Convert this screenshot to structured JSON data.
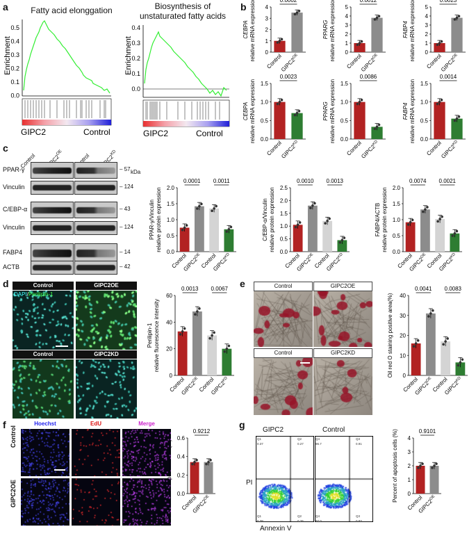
{
  "panel_letters": [
    "a",
    "b",
    "c",
    "d",
    "e",
    "f",
    "g"
  ],
  "gsea": [
    {
      "title": "Fatty acid elonggation",
      "ylabel": "Enrichment",
      "yticks": [
        "0.5",
        "0.4",
        "0.3",
        "0.2",
        "0.1",
        "0.0"
      ],
      "left_label": "GIPC2",
      "right_label": "Control"
    },
    {
      "title": "Biosynthesis of\nunstaturated fatty acids",
      "ylabel": "Enrichment",
      "yticks": [
        "0.4",
        "0.3",
        "0.2",
        "0.1",
        "0.0"
      ],
      "left_label": "GIPC2",
      "right_label": "Control"
    }
  ],
  "colors": {
    "control_red": "#b22222",
    "oe_gray": "#8c8c8c",
    "ctrl_light": "#d4d4d4",
    "kd_green": "#2e7d32",
    "gsea_line": "#33ee33"
  },
  "chart_data": [
    {
      "type": "bar",
      "panel": "b",
      "categories": [
        "Control",
        "GIPC2OE"
      ],
      "values": [
        1.0,
        3.5
      ],
      "ylabel": "CEBPA relative mRNA expression",
      "ylim": [
        0,
        4
      ],
      "yticks": [
        "0",
        "1",
        "2",
        "3",
        "4"
      ],
      "pvalue": "0.0002"
    },
    {
      "type": "bar",
      "panel": "b",
      "categories": [
        "Control",
        "GIPC2OE"
      ],
      "values": [
        1.0,
        3.8
      ],
      "ylabel": "PPARG relative mRNA expression",
      "ylim": [
        0,
        5
      ],
      "yticks": [
        "0",
        "1",
        "2",
        "3",
        "4",
        "5"
      ],
      "pvalue": "0.0012"
    },
    {
      "type": "bar",
      "panel": "b",
      "categories": [
        "Control",
        "GIPC2OE"
      ],
      "values": [
        1.0,
        3.8
      ],
      "ylabel": "FABP4 relative mRNA expression",
      "ylim": [
        0,
        5
      ],
      "yticks": [
        "0",
        "1",
        "2",
        "3",
        "4",
        "5"
      ],
      "pvalue": "0.0023"
    },
    {
      "type": "bar",
      "panel": "b",
      "categories": [
        "Control",
        "GIPC2KD"
      ],
      "values": [
        1.0,
        0.7
      ],
      "ylabel": "CEBPA relative mRNA expression",
      "ylim": [
        0,
        1.5
      ],
      "yticks": [
        "0.0",
        "0.5",
        "1.0",
        "1.5"
      ],
      "pvalue": "0.0023"
    },
    {
      "type": "bar",
      "panel": "b",
      "categories": [
        "Control",
        "GIPC2KD"
      ],
      "values": [
        1.0,
        0.33
      ],
      "ylabel": "PPARG relative mRNA expression",
      "ylim": [
        0,
        1.5
      ],
      "yticks": [
        "0.0",
        "0.5",
        "1.0",
        "1.5"
      ],
      "pvalue": "0.0086"
    },
    {
      "type": "bar",
      "panel": "b",
      "categories": [
        "Control",
        "GIPC2KD"
      ],
      "values": [
        1.0,
        0.55
      ],
      "ylabel": "FABP4 relative mRNA expression",
      "ylim": [
        0,
        1.5
      ],
      "yticks": [
        "0.0",
        "0.5",
        "1.0",
        "1.5"
      ],
      "pvalue": "0.0014"
    },
    {
      "type": "bar",
      "panel": "c",
      "categories": [
        "Control",
        "GIPC2OE",
        "Control",
        "GIPC2KD"
      ],
      "values": [
        0.75,
        1.42,
        1.35,
        0.7
      ],
      "ylabel": "PPAR-γ/Vinculin relative protein expression",
      "ylim": [
        0,
        2.0
      ],
      "yticks": [
        "0.0",
        "0.5",
        "1.0",
        "1.5",
        "2.0"
      ],
      "pvalues": [
        "0.0001",
        "0.0011"
      ]
    },
    {
      "type": "bar",
      "panel": "c",
      "categories": [
        "Control",
        "GIPC2OE",
        "Control",
        "GIPC2KD"
      ],
      "values": [
        1.05,
        1.8,
        1.2,
        0.45
      ],
      "ylabel": "C/EBP-α/Vinculin relative protein expression",
      "ylim": [
        0,
        2.5
      ],
      "yticks": [
        "0.0",
        "0.5",
        "1.0",
        "1.5",
        "2.0",
        "2.5"
      ],
      "pvalues": [
        "0.0010",
        "0.0013"
      ]
    },
    {
      "type": "bar",
      "panel": "c",
      "categories": [
        "Control",
        "GIPC2OE",
        "Control",
        "GIPC2KD"
      ],
      "values": [
        0.92,
        1.32,
        1.02,
        0.57
      ],
      "ylabel": "FABP4/ACTB relative protein expression",
      "ylim": [
        0,
        2.0
      ],
      "yticks": [
        "0.0",
        "0.5",
        "1.0",
        "1.5",
        "2.0"
      ],
      "pvalues": [
        "0.0074",
        "0.0021"
      ]
    },
    {
      "type": "bar",
      "panel": "d",
      "categories": [
        "Control",
        "GIPC2OE",
        "Control",
        "GIPC2KD"
      ],
      "values": [
        33,
        48,
        30,
        20
      ],
      "ylabel": "Perilipin-1 relative fluorescence intensity",
      "ylim": [
        0,
        60
      ],
      "yticks": [
        "0",
        "20",
        "40",
        "60"
      ],
      "pvalues": [
        "0.0013",
        "0.0067"
      ]
    },
    {
      "type": "bar",
      "panel": "e",
      "categories": [
        "Control",
        "GIPC2OE",
        "Control",
        "GIPC2KD"
      ],
      "values": [
        16,
        31,
        17,
        6.5
      ],
      "ylabel": "Oil red O staining positive area(%)",
      "ylim": [
        0,
        40
      ],
      "yticks": [
        "0",
        "10",
        "20",
        "30",
        "40"
      ],
      "pvalues": [
        "0.0041",
        "0.0083"
      ]
    },
    {
      "type": "bar",
      "panel": "f",
      "categories": [
        "Control",
        "GIPC2OE"
      ],
      "values": [
        0.34,
        0.34
      ],
      "ylabel": "EdU positive cells(%)",
      "ylim": [
        0,
        0.6
      ],
      "yticks": [
        "0.0",
        "0.2",
        "0.4",
        "0.6"
      ],
      "pvalue": "0.9212"
    },
    {
      "type": "bar",
      "panel": "g",
      "categories": [
        "Control",
        "GIPC2OE"
      ],
      "values": [
        2.0,
        2.0
      ],
      "ylabel": "Percent of apoptosis cells (%)",
      "ylim": [
        0,
        4
      ],
      "yticks": [
        "0",
        "1",
        "2",
        "3",
        "4"
      ],
      "pvalue": "0.9101"
    }
  ],
  "blot": {
    "headers": [
      "Control",
      "GIPC2OE",
      "Control",
      "GIPC2KD"
    ],
    "kda_label": "kDa",
    "rows": [
      {
        "name": "PPAR-γ",
        "kda": "57"
      },
      {
        "name": "Vinculin",
        "kda": "124"
      },
      {
        "name": "C/EBP-α",
        "kda": "43"
      },
      {
        "name": "Vinculin",
        "kda": "124"
      },
      {
        "name": "FABP4",
        "kda": "14"
      },
      {
        "name": "ACTB",
        "kda": "42"
      }
    ]
  },
  "panel_d": {
    "headers": [
      "Control",
      "GIPC2OE",
      "GIPC2KD"
    ],
    "stain_dapi": "DAPI",
    "stain_sep": "/",
    "stain_perilipin": "Perilipin-1"
  },
  "panel_e": {
    "headers": [
      "Control",
      "GIPC2OE",
      "Control",
      "GIPC2KD"
    ]
  },
  "panel_f": {
    "headers": [
      "Hoechst",
      "EdU",
      "Merge"
    ],
    "rows": [
      "Control",
      "GIPC2OE"
    ]
  },
  "panel_g": {
    "headers": [
      "GIPC2",
      "Control"
    ],
    "xlabel": "Annexin V",
    "ylabel": "PI",
    "quads": [
      [
        "Q1",
        "0.37",
        "Q2",
        "0.27"
      ],
      [
        "Q4",
        "96.7",
        "Q3",
        "0.91"
      ],
      [
        "Q1",
        "0.38",
        "Q2",
        "0.26"
      ],
      [
        "Q4",
        "97.0",
        "Q3",
        "0.83"
      ]
    ]
  }
}
